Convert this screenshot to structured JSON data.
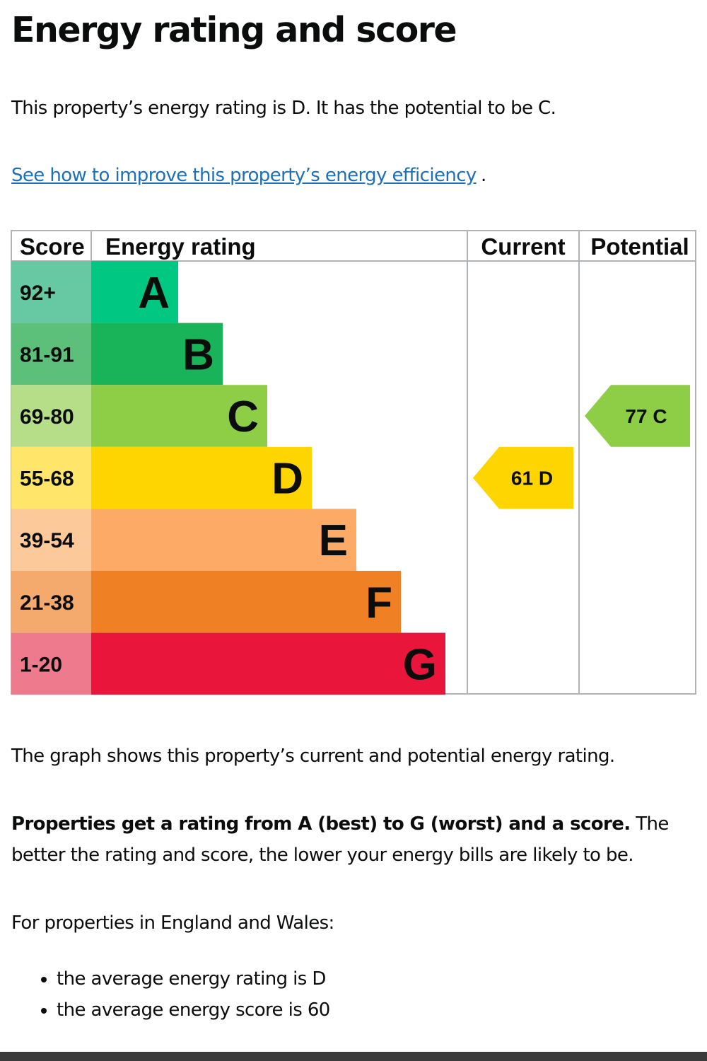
{
  "heading": "Energy rating and score",
  "intro": "This property’s energy rating is D. It has the potential to be C.",
  "improve_link": "See how to improve this property’s energy efficiency",
  "improve_link_suffix": ".",
  "chart_data": {
    "type": "table",
    "headers": {
      "score": "Score",
      "rating": "Energy rating",
      "current": "Current",
      "potential": "Potential"
    },
    "bands": [
      {
        "score": "92+",
        "letter": "A",
        "color": "#00c781",
        "score_bg": "#67c9a4"
      },
      {
        "score": "81-91",
        "letter": "B",
        "color": "#19b459",
        "score_bg": "#5cbf7a"
      },
      {
        "score": "69-80",
        "letter": "C",
        "color": "#8dce46",
        "score_bg": "#b6de88"
      },
      {
        "score": "55-68",
        "letter": "D",
        "color": "#ffd500",
        "score_bg": "#ffe66a"
      },
      {
        "score": "39-54",
        "letter": "E",
        "color": "#fcaa65",
        "score_bg": "#fcc99b"
      },
      {
        "score": "21-38",
        "letter": "F",
        "color": "#ef8023",
        "score_bg": "#f4aa6c"
      },
      {
        "score": "1-20",
        "letter": "G",
        "color": "#e9153b",
        "score_bg": "#ee7a8e"
      }
    ],
    "current": {
      "score": 61,
      "letter": "D"
    },
    "potential": {
      "score": 77,
      "letter": "C"
    }
  },
  "graph_note": "The graph shows this property’s current and potential energy rating.",
  "ratings_bold": "Properties get a rating from A (best) to G (worst) and a score.",
  "ratings_rest": " The better the rating and score, the lower your energy bills are likely to be.",
  "regional_intro": "For properties in England and Wales:",
  "averages": [
    "the average energy rating is D",
    "the average energy score is 60"
  ]
}
